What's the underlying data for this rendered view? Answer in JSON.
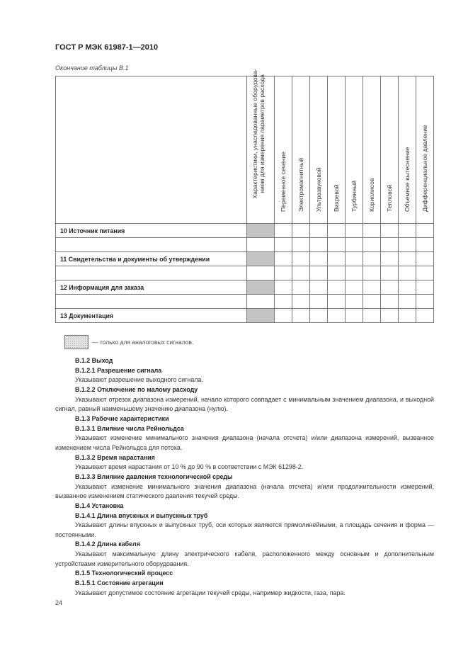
{
  "header": "ГОСТ Р МЭК 61987-1—2010",
  "table_caption": "Окончание таблицы В.1",
  "table": {
    "columns": [
      "Характеристики, унаследованные оборудова-нием для измерения параметров расхода",
      "Переменное сечение",
      "Электромагнитный",
      "Ультразвуковой",
      "Вихревой",
      "Турбинный",
      "Кориолисов",
      "Тепловой",
      "Объемное вытеснение",
      "Дифференциальное давление"
    ],
    "rows": [
      {
        "label": "10 Источник питания",
        "shaded": true
      },
      {
        "label": "",
        "shaded": false
      },
      {
        "label": "11 Свидетельства и документы об утверждении",
        "shaded": true
      },
      {
        "label": "",
        "shaded": false
      },
      {
        "label": "12 Информация для заказа",
        "shaded": true
      },
      {
        "label": "",
        "shaded": false
      },
      {
        "label": "13 Документация",
        "shaded": true
      }
    ]
  },
  "legend": "— только для аналоговых сигналов.",
  "paragraphs": [
    {
      "type": "h",
      "text": "В.1.2  Выход"
    },
    {
      "type": "h",
      "text": "В.1.2.1  Разрешение сигнала"
    },
    {
      "type": "p",
      "text": "Указывают разрешение выходного сигнала."
    },
    {
      "type": "h",
      "text": "В.1.2.2  Отключение по малому расходу"
    },
    {
      "type": "p",
      "text": "Указывают отрезок диапазона измерений, начало которого совпадает с минимальным значением диапазона, и выходной сигнал, равный наименьшему значению диапазона (нулю)."
    },
    {
      "type": "h",
      "text": "В.1.3  Рабочие характеристики"
    },
    {
      "type": "h",
      "text": "В.1.3.1  Влияние числа Рейнольдса"
    },
    {
      "type": "p",
      "text": "Указывают изменение минимального значения диапазона (начала отсчета) и/или диапазона измерений, вызванное изменением числа Рейнольдса для потока."
    },
    {
      "type": "h",
      "text": "В.1.3.2  Время нарастания"
    },
    {
      "type": "p",
      "text": "Указывают время нарастания от 10 % до 90 % в соответствии с МЭК 61298-2."
    },
    {
      "type": "h",
      "text": "В.1.3.3  Влияние давления технологической среды"
    },
    {
      "type": "p",
      "text": "Указывают изменение минимального значения диапазона (начала отсчета) и/или продолжительности измерений, вызванное изменением статического давления текучей среды."
    },
    {
      "type": "h",
      "text": "В.1.4  Установка"
    },
    {
      "type": "h",
      "text": "В.1.4.1  Длина впускных и выпускных труб"
    },
    {
      "type": "p",
      "text": "Указывают длины впускных и выпускных труб, оси которых являются прямолинейными, а площадь сечения и форма — постоянными."
    },
    {
      "type": "h",
      "text": "В.1.4.2  Длина кабеля"
    },
    {
      "type": "p",
      "text": "Указывают максимальную длину электрического кабеля, расположенного между основным и дополнительным устройствами измерительного оборудования."
    },
    {
      "type": "h",
      "text": "В.1.5  Технологический процесс"
    },
    {
      "type": "h",
      "text": "В.1.5.1  Состояние агрегации"
    },
    {
      "type": "p",
      "text": "Указывают допустимое состояние агрегации текучей среды, например жидкости, газа, пара."
    }
  ],
  "page_number": "24",
  "colors": {
    "shaded_cell": "#c4c4c4",
    "border": "#777777"
  }
}
